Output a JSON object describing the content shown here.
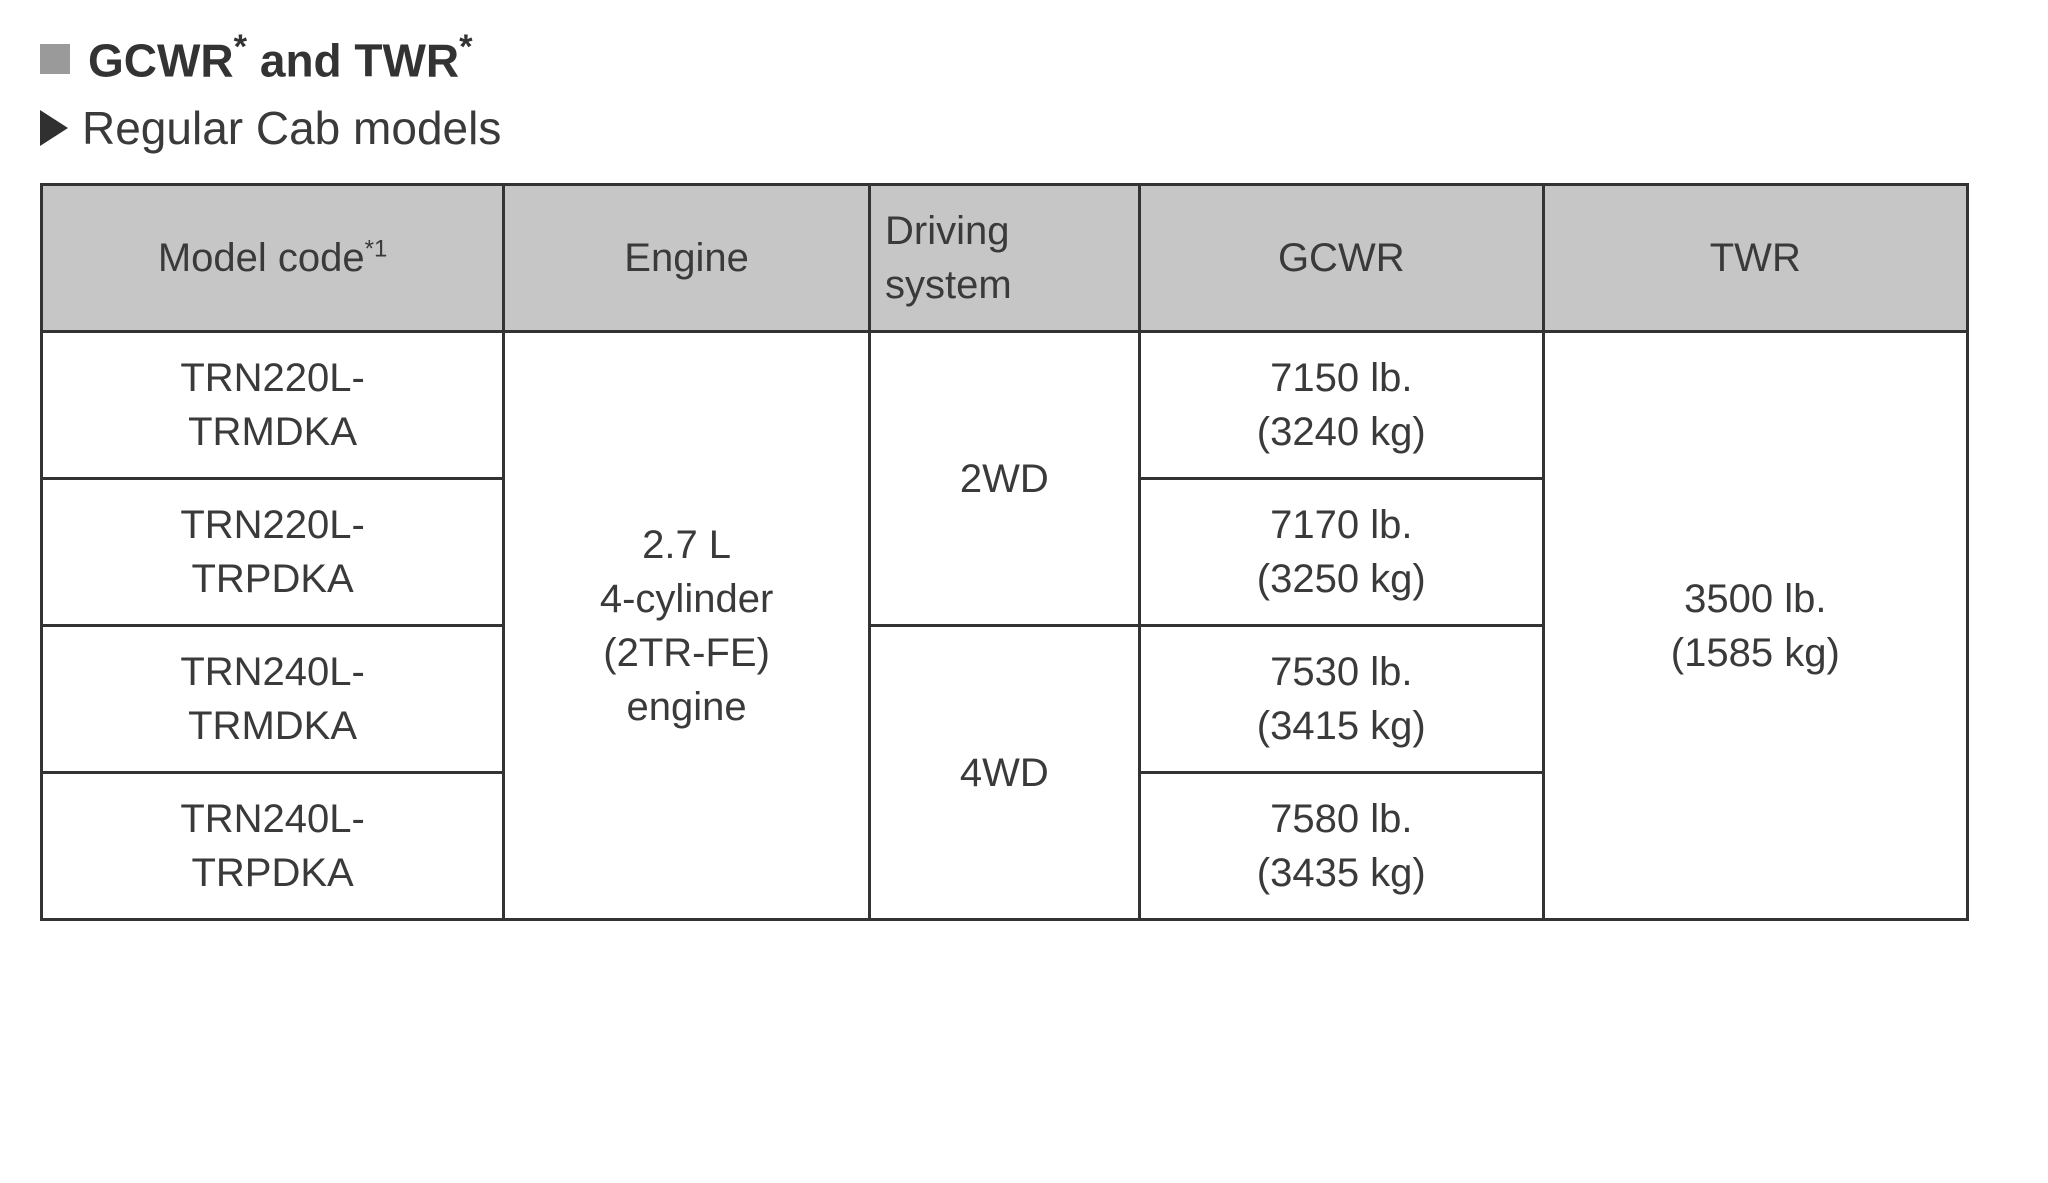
{
  "title": {
    "label_part1": "GCWR",
    "sup1": "*",
    "label_mid": " and TWR",
    "sup2": "*"
  },
  "subtitle": "Regular Cab models",
  "table": {
    "headers": {
      "model_code": "Model code",
      "model_code_sup": "*1",
      "engine": "Engine",
      "driving_system_line1": "Driving",
      "driving_system_line2": "system",
      "gcwr": "GCWR",
      "twr": "TWR"
    },
    "engine_text_line1": "2.7 L",
    "engine_text_line2": "4-cylinder",
    "engine_text_line3": "(2TR-FE)",
    "engine_text_line4": "engine",
    "driving_2wd": "2WD",
    "driving_4wd": "4WD",
    "twr_line1": "3500 lb.",
    "twr_line2": "(1585 kg)",
    "rows": [
      {
        "model_line1": "TRN220L-",
        "model_line2": "TRMDKA",
        "gcwr_line1": "7150 lb.",
        "gcwr_line2": "(3240 kg)"
      },
      {
        "model_line1": "TRN220L-",
        "model_line2": "TRPDKA",
        "gcwr_line1": "7170 lb.",
        "gcwr_line2": "(3250 kg)"
      },
      {
        "model_line1": "TRN240L-",
        "model_line2": "TRMDKA",
        "gcwr_line1": "7530 lb.",
        "gcwr_line2": "(3415 kg)"
      },
      {
        "model_line1": "TRN240L-",
        "model_line2": "TRPDKA",
        "gcwr_line1": "7580 lb.",
        "gcwr_line2": "(3435 kg)"
      }
    ]
  },
  "colors": {
    "header_bg": "#c6c6c6",
    "border": "#333333",
    "text": "#3a3a3a",
    "square_bullet": "#9a9a9a",
    "triangle_bullet": "#303030",
    "page_bg": "#ffffff"
  }
}
